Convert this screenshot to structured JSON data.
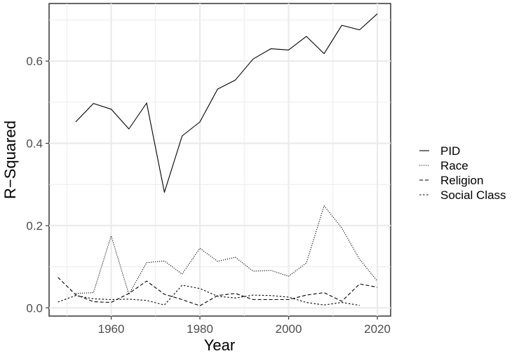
{
  "chart_data": {
    "type": "line",
    "xlabel": "Year",
    "ylabel": "R−Squared",
    "xlim": [
      1946,
      2023
    ],
    "ylim": [
      -0.02,
      0.74
    ],
    "x_ticks": [
      "1960",
      "1980",
      "2000",
      "2020"
    ],
    "y_ticks": [
      "0.0",
      "0.2",
      "0.4",
      "0.6"
    ],
    "grid": true,
    "legend_position": "right",
    "series": [
      {
        "name": "PID",
        "dash": "solid",
        "points": [
          [
            1952,
            0.452
          ],
          [
            1956,
            0.497
          ],
          [
            1960,
            0.483
          ],
          [
            1964,
            0.435
          ],
          [
            1968,
            0.498
          ],
          [
            1972,
            0.281
          ],
          [
            1976,
            0.418
          ],
          [
            1980,
            0.452
          ],
          [
            1984,
            0.532
          ],
          [
            1988,
            0.554
          ],
          [
            1992,
            0.605
          ],
          [
            1996,
            0.63
          ],
          [
            2000,
            0.627
          ],
          [
            2004,
            0.66
          ],
          [
            2008,
            0.618
          ],
          [
            2012,
            0.687
          ],
          [
            2016,
            0.676
          ],
          [
            2020,
            0.715
          ]
        ]
      },
      {
        "name": "Race",
        "dash": "dotted",
        "points": [
          [
            1952,
            0.035
          ],
          [
            1956,
            0.037
          ],
          [
            1960,
            0.175
          ],
          [
            1964,
            0.033
          ],
          [
            1968,
            0.11
          ],
          [
            1972,
            0.114
          ],
          [
            1976,
            0.082
          ],
          [
            1980,
            0.145
          ],
          [
            1984,
            0.113
          ],
          [
            1988,
            0.123
          ],
          [
            1992,
            0.089
          ],
          [
            1996,
            0.091
          ],
          [
            2000,
            0.077
          ],
          [
            2004,
            0.109
          ],
          [
            2008,
            0.248
          ],
          [
            2012,
            0.194
          ],
          [
            2016,
            0.118
          ],
          [
            2020,
            0.065
          ]
        ]
      },
      {
        "name": "Religion",
        "dash": "dashed",
        "points": [
          [
            1948,
            0.074
          ],
          [
            1952,
            0.032
          ],
          [
            1956,
            0.015
          ],
          [
            1960,
            0.013
          ],
          [
            1964,
            0.035
          ],
          [
            1968,
            0.065
          ],
          [
            1972,
            0.033
          ],
          [
            1976,
            0.02
          ],
          [
            1980,
            0.005
          ],
          [
            1984,
            0.03
          ],
          [
            1988,
            0.035
          ],
          [
            1992,
            0.02
          ],
          [
            1996,
            0.02
          ],
          [
            2000,
            0.02
          ],
          [
            2004,
            0.031
          ],
          [
            2008,
            0.037
          ],
          [
            2012,
            0.016
          ],
          [
            2016,
            0.058
          ],
          [
            2020,
            0.05
          ]
        ]
      },
      {
        "name": "Social Class",
        "dash": "short-dashed",
        "points": [
          [
            1948,
            0.014
          ],
          [
            1952,
            0.03
          ],
          [
            1956,
            0.022
          ],
          [
            1960,
            0.02
          ],
          [
            1964,
            0.021
          ],
          [
            1968,
            0.018
          ],
          [
            1972,
            0.007
          ],
          [
            1976,
            0.055
          ],
          [
            1980,
            0.047
          ],
          [
            1984,
            0.028
          ],
          [
            1988,
            0.024
          ],
          [
            1992,
            0.031
          ],
          [
            1996,
            0.03
          ],
          [
            2000,
            0.026
          ],
          [
            2004,
            0.013
          ],
          [
            2008,
            0.007
          ],
          [
            2012,
            0.013
          ],
          [
            2016,
            0.006
          ]
        ]
      }
    ]
  }
}
